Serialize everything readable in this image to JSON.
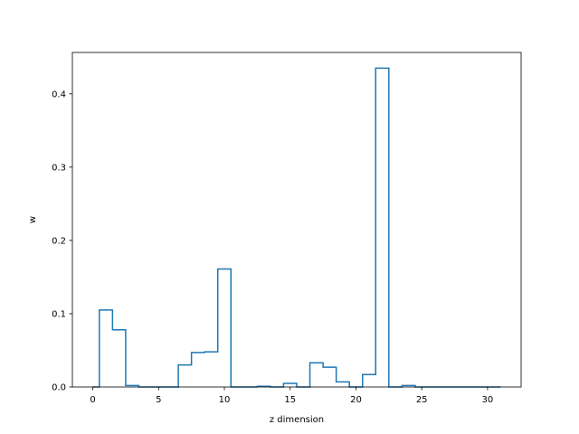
{
  "chart_data": {
    "type": "step",
    "title": "",
    "xlabel": "z dimension",
    "ylabel": "w",
    "xlim": [
      -1.55,
      32.55
    ],
    "ylim": [
      0,
      0.4565
    ],
    "xticks": [
      0,
      5,
      10,
      15,
      20,
      25,
      30
    ],
    "yticks": [
      0.0,
      0.1,
      0.2,
      0.3,
      0.4
    ],
    "x": [
      0,
      1,
      2,
      3,
      4,
      5,
      6,
      7,
      8,
      9,
      10,
      11,
      12,
      13,
      14,
      15,
      16,
      17,
      18,
      19,
      20,
      21,
      22,
      23,
      24,
      25,
      26,
      27,
      28,
      29,
      30,
      31
    ],
    "values": [
      0.0,
      0.105,
      0.078,
      0.002,
      0.0,
      0.0,
      0.0,
      0.03,
      0.047,
      0.048,
      0.161,
      0.0,
      0.0,
      0.001,
      0.0,
      0.005,
      0.0,
      0.033,
      0.027,
      0.007,
      0.0,
      0.017,
      0.435,
      0.0,
      0.002,
      0.0,
      0.0,
      0.0,
      0.0,
      0.0,
      0.0,
      0.0
    ],
    "grid": false,
    "line_color": "#1f77b4"
  }
}
